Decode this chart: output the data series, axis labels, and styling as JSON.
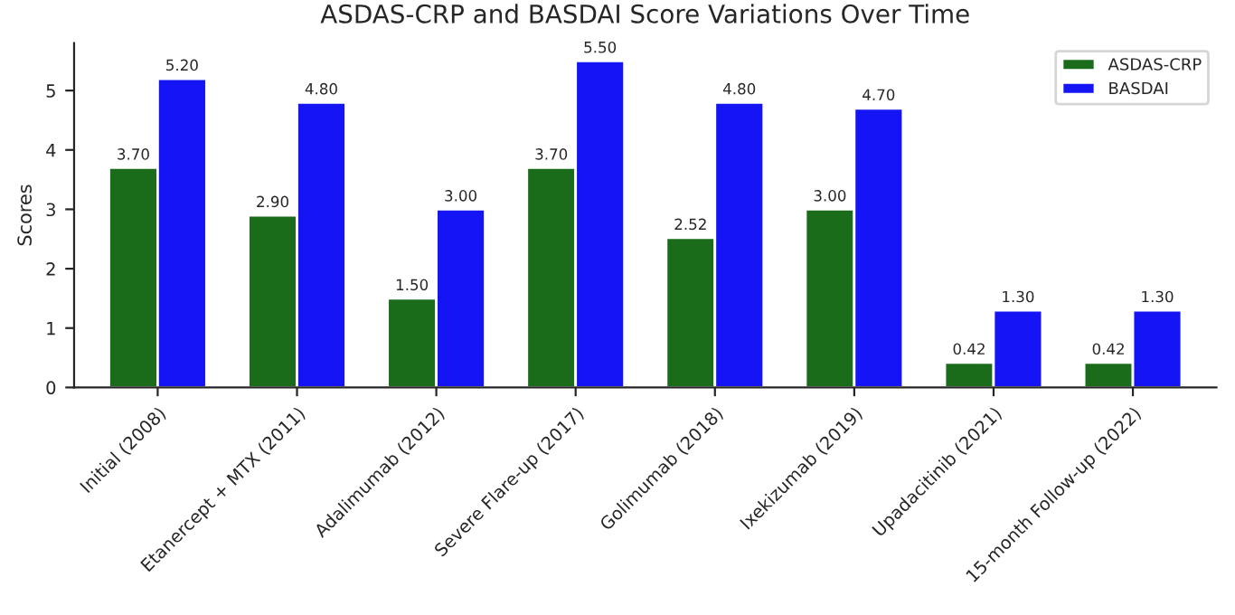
{
  "chart_data": {
    "type": "bar",
    "title": "ASDAS-CRP and BASDAI Score Variations Over Time",
    "ylabel": "Scores",
    "categories": [
      "Initial (2008)",
      "Etanercept + MTX (2011)",
      "Adalimumab (2012)",
      "Severe Flare-up (2017)",
      "Golimumab (2018)",
      "Ixekizumab (2019)",
      "Upadacitinib (2021)",
      "15-month Follow-up (2022)"
    ],
    "series": [
      {
        "name": "ASDAS-CRP",
        "color": "#1a6b1a",
        "values": [
          3.7,
          2.9,
          1.5,
          3.7,
          2.52,
          3.0,
          0.42,
          0.42
        ],
        "value_labels": [
          "3.70",
          "2.90",
          "1.50",
          "3.70",
          "2.52",
          "3.00",
          "0.42",
          "0.42"
        ]
      },
      {
        "name": "BASDAI",
        "color": "#1414f5",
        "values": [
          5.2,
          4.8,
          3.0,
          5.5,
          4.8,
          4.7,
          1.3,
          1.3
        ],
        "value_labels": [
          "5.20",
          "4.80",
          "3.00",
          "5.50",
          "4.80",
          "4.70",
          "1.30",
          "1.30"
        ]
      }
    ],
    "ylim": [
      0,
      5.8
    ],
    "yticks": [
      0,
      1,
      2,
      3,
      4,
      5
    ],
    "legend": "top right",
    "grid": false
  }
}
